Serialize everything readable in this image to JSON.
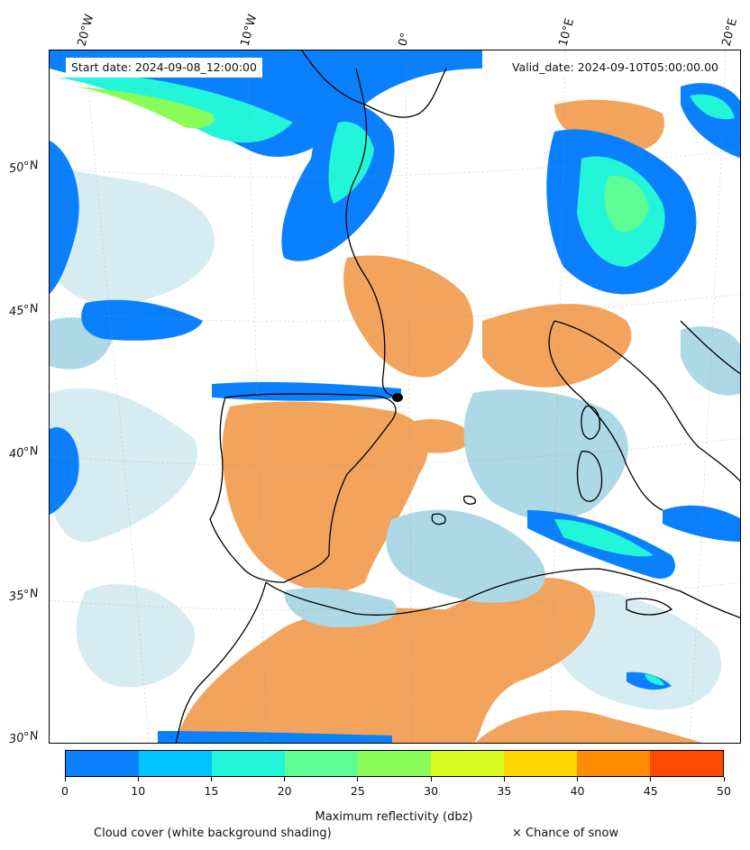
{
  "header": {
    "start_date": "Start date: 2024-09-08_12:00:00",
    "valid_date": "Valid_date: 2024-09-10T05:00:00.00"
  },
  "axes": {
    "longitude_labels": [
      "20°W",
      "10°W",
      "0°",
      "10°E",
      "20°E"
    ],
    "latitude_labels": [
      "50°N",
      "45°N",
      "40°N",
      "35°N",
      "30°N"
    ]
  },
  "colorbar": {
    "label": "Maximum reflectivity (dbz)",
    "ticks": [
      "0",
      "5",
      "10",
      "15",
      "20",
      "25",
      "30",
      "35",
      "40",
      "45",
      "50"
    ],
    "colors": [
      "#0a80ff",
      "#00c3ff",
      "#22f5d8",
      "#5dfd96",
      "#8bfb58",
      "#d9fd22",
      "#fdd600",
      "#ff8c00",
      "#ff4a00"
    ]
  },
  "legend": {
    "cloud_cover": "Cloud cover (white background shading)",
    "snow": "× Chance of snow"
  },
  "palette": {
    "land_warm": "#f2a35c",
    "sea_cloud": "#add8e6",
    "coast": "#000000"
  },
  "icons": {
    "station_marker": "black-dot"
  }
}
